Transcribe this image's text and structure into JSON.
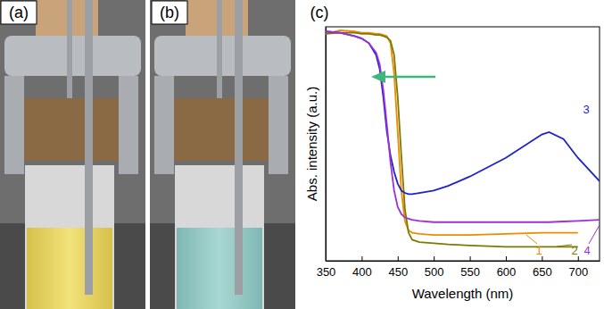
{
  "panel_labels": [
    "(a)",
    "(b)",
    "(c)"
  ],
  "chart_data": {
    "type": "line",
    "x_label": "Wavelength (nm)",
    "y_label": "Abs. intensity (a.u.)",
    "x": [
      350,
      370,
      390,
      400,
      410,
      420,
      425,
      430,
      435,
      440,
      445,
      450,
      455,
      460,
      465,
      470,
      480,
      500,
      520,
      550,
      600,
      650,
      660,
      680,
      700,
      730
    ],
    "xlim": [
      350,
      730
    ],
    "xticks": [
      350,
      400,
      450,
      500,
      550,
      600,
      650,
      700
    ],
    "ylim": [
      0,
      1
    ],
    "tick_labels": "x",
    "grid": false,
    "series": [
      {
        "name": "1",
        "color": "#f08a00",
        "values": [
          0.97,
          0.985,
          0.98,
          0.975,
          0.975,
          0.97,
          0.97,
          0.965,
          0.96,
          0.93,
          0.8,
          0.55,
          0.3,
          0.17,
          0.13,
          0.12,
          0.115,
          0.11,
          0.11,
          0.11,
          0.115,
          0.12,
          0.12,
          0.12,
          0.12,
          null
        ]
      },
      {
        "name": "2",
        "color": "#7d7a00",
        "values": [
          0.97,
          0.975,
          0.975,
          0.97,
          0.97,
          0.965,
          0.965,
          0.96,
          0.955,
          0.94,
          0.88,
          0.7,
          0.45,
          0.22,
          0.12,
          0.09,
          0.08,
          0.075,
          0.07,
          0.065,
          0.06,
          0.06,
          0.06,
          0.06,
          0.06,
          null
        ]
      },
      {
        "name": "3",
        "color": "#1f22c8",
        "values": [
          0.98,
          0.975,
          0.96,
          0.95,
          0.93,
          0.88,
          0.82,
          0.7,
          0.55,
          0.45,
          0.38,
          0.33,
          0.3,
          0.29,
          0.285,
          0.285,
          0.29,
          0.3,
          0.32,
          0.36,
          0.44,
          0.54,
          0.55,
          0.52,
          0.44,
          0.34
        ]
      },
      {
        "name": "4",
        "color": "#9b30d9",
        "values": [
          0.98,
          0.975,
          0.96,
          0.95,
          0.93,
          0.89,
          0.84,
          0.73,
          0.58,
          0.42,
          0.3,
          0.23,
          0.2,
          0.185,
          0.18,
          0.175,
          0.17,
          0.165,
          0.165,
          0.165,
          0.165,
          0.165,
          0.165,
          0.168,
          0.17,
          0.175
        ]
      }
    ]
  }
}
